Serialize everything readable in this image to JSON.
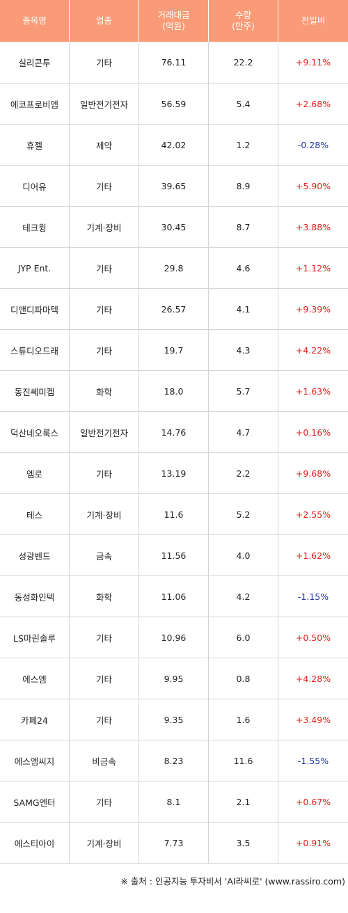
{
  "headers": {
    "name": "종목명",
    "sector": "업종",
    "amount_l1": "거래대금",
    "amount_l2": "(억원)",
    "qty_l1": "수량",
    "qty_l2": "(만주)",
    "change": "전일비"
  },
  "rows": [
    {
      "name": "실리콘투",
      "sector": "기타",
      "amount": "76.11",
      "qty": "22.2",
      "change": "+9.11%",
      "dir": "pos"
    },
    {
      "name": "에코프로비엠",
      "sector": "일반전기전자",
      "amount": "56.59",
      "qty": "5.4",
      "change": "+2.68%",
      "dir": "pos"
    },
    {
      "name": "휴젤",
      "sector": "제약",
      "amount": "42.02",
      "qty": "1.2",
      "change": "-0.28%",
      "dir": "neg"
    },
    {
      "name": "디어유",
      "sector": "기타",
      "amount": "39.65",
      "qty": "8.9",
      "change": "+5.90%",
      "dir": "pos"
    },
    {
      "name": "테크윙",
      "sector": "기계·장비",
      "amount": "30.45",
      "qty": "8.7",
      "change": "+3.88%",
      "dir": "pos"
    },
    {
      "name": "JYP Ent.",
      "sector": "기타",
      "amount": "29.8",
      "qty": "4.6",
      "change": "+1.12%",
      "dir": "pos"
    },
    {
      "name": "디앤디파마텍",
      "sector": "기타",
      "amount": "26.57",
      "qty": "4.1",
      "change": "+9.39%",
      "dir": "pos"
    },
    {
      "name": "스튜디오드래",
      "sector": "기타",
      "amount": "19.7",
      "qty": "4.3",
      "change": "+4.22%",
      "dir": "pos"
    },
    {
      "name": "동진쎄미켐",
      "sector": "화학",
      "amount": "18.0",
      "qty": "5.7",
      "change": "+1.63%",
      "dir": "pos"
    },
    {
      "name": "덕산네오룩스",
      "sector": "일반전기전자",
      "amount": "14.76",
      "qty": "4.7",
      "change": "+0.16%",
      "dir": "pos"
    },
    {
      "name": "엠로",
      "sector": "기타",
      "amount": "13.19",
      "qty": "2.2",
      "change": "+9.68%",
      "dir": "pos"
    },
    {
      "name": "테스",
      "sector": "기계·장비",
      "amount": "11.6",
      "qty": "5.2",
      "change": "+2.55%",
      "dir": "pos"
    },
    {
      "name": "성광벤드",
      "sector": "금속",
      "amount": "11.56",
      "qty": "4.0",
      "change": "+1.62%",
      "dir": "pos"
    },
    {
      "name": "동성화인텍",
      "sector": "화학",
      "amount": "11.06",
      "qty": "4.2",
      "change": "-1.15%",
      "dir": "neg"
    },
    {
      "name": "LS마린솔루",
      "sector": "기타",
      "amount": "10.96",
      "qty": "6.0",
      "change": "+0.50%",
      "dir": "pos"
    },
    {
      "name": "에스엠",
      "sector": "기타",
      "amount": "9.95",
      "qty": "0.8",
      "change": "+4.28%",
      "dir": "pos"
    },
    {
      "name": "카페24",
      "sector": "기타",
      "amount": "9.35",
      "qty": "1.6",
      "change": "+3.49%",
      "dir": "pos"
    },
    {
      "name": "에스엠씨지",
      "sector": "비금속",
      "amount": "8.23",
      "qty": "11.6",
      "change": "-1.55%",
      "dir": "neg"
    },
    {
      "name": "SAMG엔터",
      "sector": "기타",
      "amount": "8.1",
      "qty": "2.1",
      "change": "+0.67%",
      "dir": "pos"
    },
    {
      "name": "에스티아이",
      "sector": "기계·장비",
      "amount": "7.73",
      "qty": "3.5",
      "change": "+0.91%",
      "dir": "pos"
    }
  ],
  "footer": "※ 출처 : 인공지능 투자비서 'AI라씨로' (www.rassiro.com)",
  "colors": {
    "header_bg": "#f99b76",
    "up": "#e0211d",
    "down": "#2233aa"
  }
}
